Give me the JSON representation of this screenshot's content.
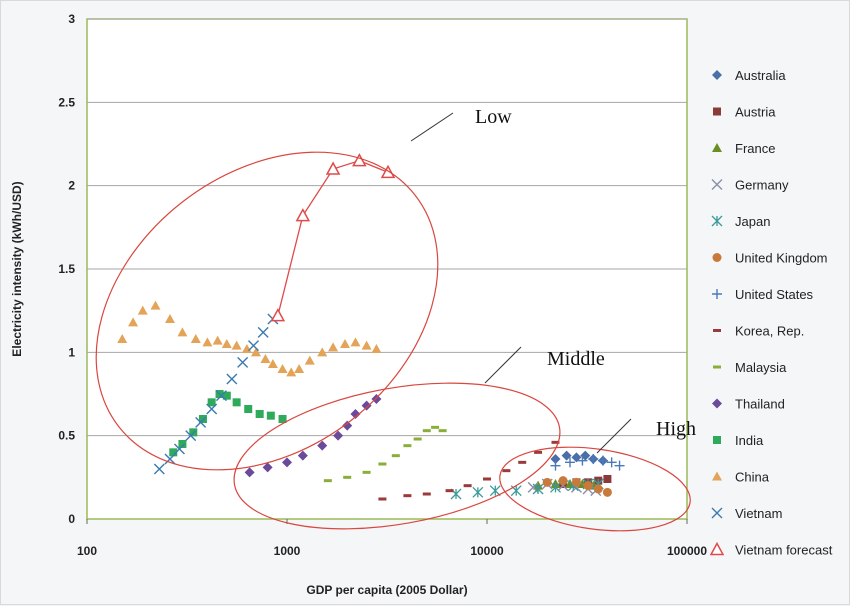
{
  "chart_data": {
    "type": "scatter",
    "xlabel": "GDP per capita (2005 Dollar)",
    "ylabel": "Electricity intensity (kWh/USD)",
    "x_scale": "log",
    "xlim": [
      100,
      100000
    ],
    "ylim": [
      0,
      3
    ],
    "x_ticks": [
      100,
      1000,
      10000,
      100000
    ],
    "x_tick_labels": [
      "100",
      "1000",
      "10000",
      "100000"
    ],
    "y_ticks": [
      0,
      0.5,
      1,
      1.5,
      2,
      2.5,
      3
    ],
    "y_tick_labels": [
      "0",
      "0.5",
      "1",
      "1.5",
      "2",
      "2.5",
      "3"
    ],
    "grid": "horizontal",
    "legend_position": "right",
    "series": [
      {
        "name": "Australia",
        "marker": "diamond",
        "color": "#4a6ea8",
        "x": [
          22000,
          25000,
          28000,
          31000,
          34000,
          38000
        ],
        "y": [
          0.36,
          0.38,
          0.37,
          0.38,
          0.36,
          0.35
        ]
      },
      {
        "name": "Austria",
        "marker": "square",
        "color": "#8b3a3a",
        "x": [
          24000,
          28000,
          32000,
          36000,
          40000
        ],
        "y": [
          0.21,
          0.22,
          0.22,
          0.23,
          0.24
        ]
      },
      {
        "name": "France",
        "marker": "triangle",
        "color": "#6b8e23",
        "x": [
          18000,
          22000,
          26000,
          30000,
          34000
        ],
        "y": [
          0.2,
          0.21,
          0.21,
          0.21,
          0.2
        ]
      },
      {
        "name": "Germany",
        "marker": "x",
        "color": "#8a8fa8",
        "x": [
          17000,
          20000,
          24000,
          28000,
          32000,
          35000
        ],
        "y": [
          0.19,
          0.21,
          0.2,
          0.19,
          0.18,
          0.17
        ]
      },
      {
        "name": "Japan",
        "marker": "star",
        "color": "#3a9a9a",
        "x": [
          7000,
          9000,
          11000,
          14000,
          18000,
          22000,
          27000,
          32000,
          36000
        ],
        "y": [
          0.15,
          0.16,
          0.17,
          0.17,
          0.18,
          0.19,
          0.2,
          0.21,
          0.21
        ]
      },
      {
        "name": "United Kingdom",
        "marker": "circle",
        "color": "#c87a3a",
        "x": [
          20000,
          24000,
          28000,
          32000,
          36000,
          40000
        ],
        "y": [
          0.22,
          0.23,
          0.22,
          0.2,
          0.18,
          0.16
        ]
      },
      {
        "name": "United States",
        "marker": "plus",
        "color": "#4a7ab8",
        "x": [
          22000,
          26000,
          30000,
          34000,
          38000,
          42000,
          46000
        ],
        "y": [
          0.32,
          0.34,
          0.35,
          0.36,
          0.35,
          0.34,
          0.32
        ]
      },
      {
        "name": "Korea, Rep.",
        "marker": "dash",
        "color": "#9a3a3a",
        "x": [
          3000,
          4000,
          5000,
          6500,
          8000,
          10000,
          12500,
          15000,
          18000,
          22000
        ],
        "y": [
          0.12,
          0.14,
          0.15,
          0.17,
          0.2,
          0.24,
          0.29,
          0.34,
          0.4,
          0.46
        ]
      },
      {
        "name": "Malaysia",
        "marker": "dash",
        "color": "#8aae3a",
        "x": [
          1600,
          2000,
          2500,
          3000,
          3500,
          4000,
          4500,
          5000,
          5500,
          6000
        ],
        "y": [
          0.23,
          0.25,
          0.28,
          0.33,
          0.38,
          0.44,
          0.48,
          0.53,
          0.55,
          0.53
        ]
      },
      {
        "name": "Thailand",
        "marker": "diamond",
        "color": "#6a4a9a",
        "x": [
          650,
          800,
          1000,
          1200,
          1500,
          1800,
          2000,
          2200,
          2500,
          2800
        ],
        "y": [
          0.28,
          0.31,
          0.34,
          0.38,
          0.44,
          0.5,
          0.56,
          0.63,
          0.68,
          0.72
        ]
      },
      {
        "name": "India",
        "marker": "square",
        "color": "#2eaa5a",
        "x": [
          270,
          300,
          340,
          380,
          420,
          460,
          500,
          560,
          640,
          730,
          830,
          950
        ],
        "y": [
          0.4,
          0.45,
          0.52,
          0.6,
          0.7,
          0.75,
          0.74,
          0.7,
          0.66,
          0.63,
          0.62,
          0.6
        ]
      },
      {
        "name": "China",
        "marker": "triangle",
        "color": "#e3a45a",
        "x": [
          150,
          170,
          190,
          220,
          260,
          300,
          350,
          400,
          450,
          500,
          560,
          630,
          700,
          780,
          850,
          950,
          1050,
          1150,
          1300,
          1500,
          1700,
          1950,
          2200,
          2500,
          2800
        ],
        "y": [
          1.08,
          1.18,
          1.25,
          1.28,
          1.2,
          1.12,
          1.08,
          1.06,
          1.07,
          1.05,
          1.04,
          1.02,
          1.0,
          0.96,
          0.93,
          0.9,
          0.88,
          0.9,
          0.95,
          1.0,
          1.03,
          1.05,
          1.06,
          1.04,
          1.02
        ]
      },
      {
        "name": "Vietnam",
        "marker": "x",
        "color": "#3a7ab0",
        "x": [
          230,
          260,
          290,
          330,
          370,
          420,
          470,
          530,
          600,
          680,
          760,
          850
        ],
        "y": [
          0.3,
          0.36,
          0.42,
          0.5,
          0.58,
          0.66,
          0.74,
          0.84,
          0.94,
          1.04,
          1.12,
          1.2
        ]
      },
      {
        "name": "Vietnam forecast",
        "marker": "open-triangle",
        "color": "#e04a4a",
        "line": true,
        "x": [
          900,
          1200,
          1700,
          2300,
          3200
        ],
        "y": [
          1.22,
          1.82,
          2.1,
          2.15,
          2.08
        ]
      }
    ],
    "annotations": [
      {
        "text": "Low"
      },
      {
        "text": "Middle"
      },
      {
        "text": "High"
      }
    ]
  }
}
